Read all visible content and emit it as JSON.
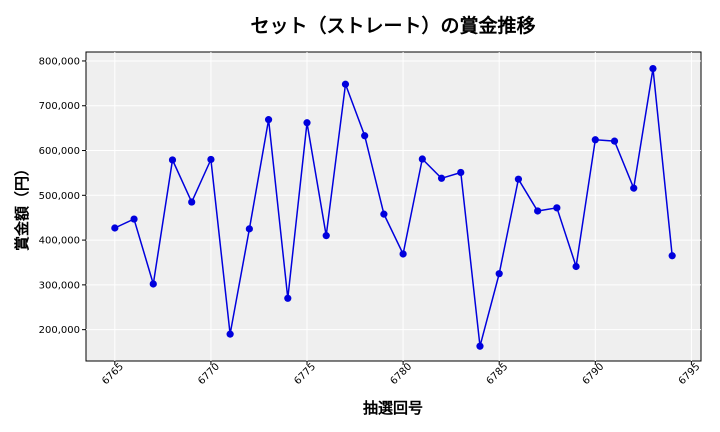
{
  "chart_data": {
    "type": "line",
    "title": "セット（ストレート）の賞金推移",
    "xlabel": "抽選回号",
    "ylabel": "賞金額（円）",
    "xlim": [
      6763.5,
      6795.5
    ],
    "ylim": [
      130000,
      820000
    ],
    "xticks": [
      6765,
      6770,
      6775,
      6780,
      6785,
      6790,
      6795
    ],
    "yticks": [
      200000,
      300000,
      400000,
      500000,
      600000,
      700000,
      800000
    ],
    "xtick_labels": [
      "6765",
      "6770",
      "6775",
      "6780",
      "6785",
      "6790",
      "6795"
    ],
    "ytick_labels": [
      "200,000",
      "300,000",
      "400,000",
      "500,000",
      "600,000",
      "700,000",
      "800,000"
    ],
    "grid": true,
    "series_color": "#0000dd",
    "background_color": "#efefef",
    "x": [
      6765,
      6766,
      6767,
      6768,
      6769,
      6770,
      6771,
      6772,
      6773,
      6774,
      6775,
      6776,
      6777,
      6778,
      6779,
      6780,
      6781,
      6782,
      6783,
      6784,
      6785,
      6786,
      6787,
      6788,
      6789,
      6790,
      6791,
      6792,
      6793,
      6794
    ],
    "values": [
      427000,
      447000,
      302000,
      579000,
      485000,
      580000,
      190000,
      425000,
      669000,
      270000,
      662000,
      410000,
      748000,
      633000,
      458000,
      369000,
      581000,
      538000,
      551000,
      163000,
      325000,
      536000,
      465000,
      472000,
      341000,
      624000,
      621000,
      516000,
      783000,
      365000
    ]
  }
}
